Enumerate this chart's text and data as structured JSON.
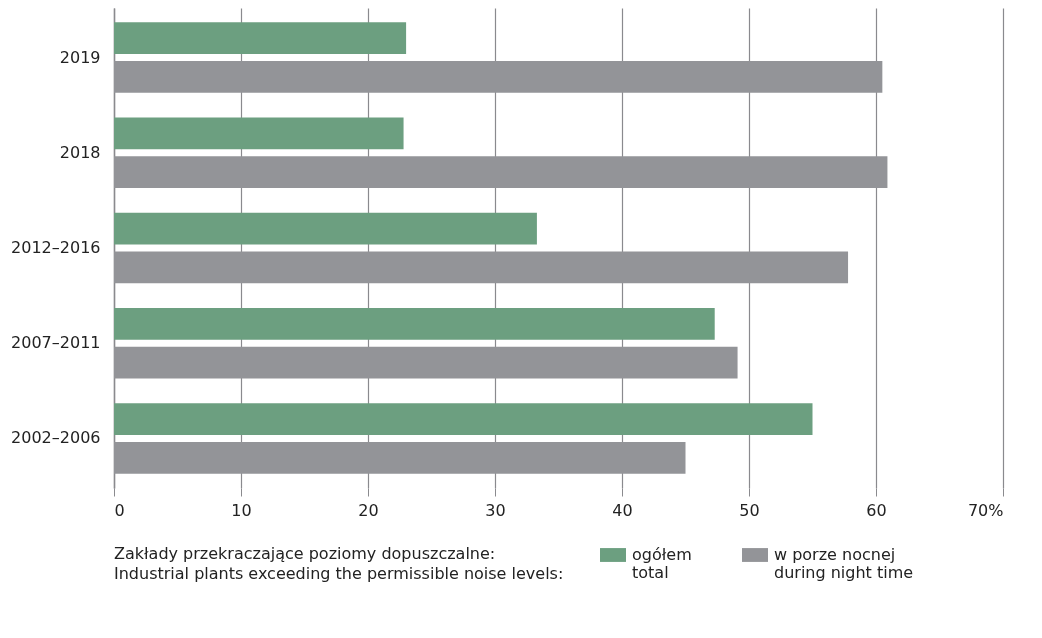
{
  "chart_data": {
    "type": "bar",
    "orientation": "horizontal",
    "categories": [
      "2019",
      "2018",
      "2012–2016",
      "2007–2011",
      "2002–2006"
    ],
    "series": [
      {
        "name": "ogółem\ntotal",
        "color": "#6c9f80",
        "values": [
          23.0,
          22.8,
          33.3,
          47.3,
          55.0
        ]
      },
      {
        "name": "w porze nocnej\nduring night time",
        "color": "#939498",
        "values": [
          60.5,
          60.9,
          57.8,
          49.1,
          45.0
        ]
      }
    ],
    "xlim": [
      0,
      70
    ],
    "xticks": [
      0,
      10,
      20,
      30,
      40,
      50,
      60,
      {
        "value": 70,
        "label": "70%"
      }
    ],
    "grid": "x",
    "legend": "bottom",
    "legend_title": "Zakłady przekraczające poziomy dopuszczalne:\nIndustrial plants exceeding the permissible noise levels:"
  }
}
